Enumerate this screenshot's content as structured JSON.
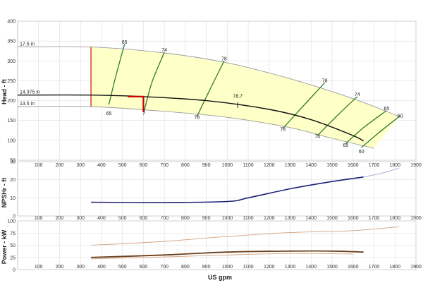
{
  "chart_data": [
    {
      "type": "line",
      "panel": "head",
      "ylabel": "Head - ft",
      "xlabel": "",
      "xlim": [
        0,
        1900
      ],
      "ylim": [
        50,
        400
      ],
      "x_ticks": [
        100,
        200,
        300,
        400,
        500,
        600,
        700,
        800,
        900,
        1000,
        1100,
        1200,
        1300,
        1400,
        1500,
        1600,
        1700,
        1800,
        1900
      ],
      "y_ticks": [
        50,
        100,
        150,
        200,
        250,
        300,
        350,
        400
      ],
      "grid": true,
      "colors": {
        "region": "#ffffc8",
        "efficiency": "#2e7d32",
        "operating": "#111111",
        "max_min": "#9a9a9a",
        "duty": "#cc0000",
        "min_flow_line": "#cc3322"
      },
      "series": [
        {
          "name": "17.5 in",
          "role": "max_diameter",
          "x": [
            0,
            350,
            700,
            1000,
            1300,
            1600,
            1820
          ],
          "y": [
            335,
            335,
            320,
            295,
            255,
            205,
            160
          ]
        },
        {
          "name": "14.375 in",
          "role": "operating_diameter",
          "x": [
            0,
            350,
            600,
            900,
            1200,
            1400,
            1600,
            1650
          ],
          "y": [
            214,
            214,
            210,
            200,
            178,
            152,
            112,
            98
          ]
        },
        {
          "name": "13.5 in",
          "role": "min_diameter",
          "x": [
            0,
            350,
            700,
            1000,
            1300,
            1500,
            1700
          ],
          "y": [
            185,
            185,
            173,
            158,
            132,
            105,
            80
          ]
        }
      ],
      "efficiency_contours": [
        {
          "label": "65",
          "x": [
            435,
            470,
            510
          ],
          "y": [
            190,
            265,
            342
          ]
        },
        {
          "label": "74",
          "x": [
            602,
            640,
            700
          ],
          "y": [
            170,
            245,
            322
          ]
        },
        {
          "label": "78",
          "x": [
            855,
            910,
            985
          ],
          "y": [
            160,
            220,
            300
          ]
        },
        {
          "label": "78",
          "x": [
            1265,
            1360,
            1465
          ],
          "y": [
            130,
            185,
            245
          ]
        },
        {
          "label": "74",
          "x": [
            1430,
            1520,
            1620
          ],
          "y": [
            112,
            160,
            210
          ]
        },
        {
          "label": "65",
          "x": [
            1565,
            1650,
            1760
          ],
          "y": [
            92,
            132,
            175
          ]
        },
        {
          "label": "60",
          "x": [
            1640,
            1720,
            1825
          ],
          "y": [
            82,
            118,
            162
          ]
        }
      ],
      "annotations": [
        {
          "text": "65",
          "x": 510,
          "y": 348
        },
        {
          "text": "74",
          "x": 700,
          "y": 328
        },
        {
          "text": "78",
          "x": 985,
          "y": 306
        },
        {
          "text": "78",
          "x": 1465,
          "y": 251
        },
        {
          "text": "74",
          "x": 1620,
          "y": 216
        },
        {
          "text": "65",
          "x": 1760,
          "y": 181
        },
        {
          "text": "60",
          "x": 1825,
          "y": 162
        },
        {
          "text": "65",
          "x": 435,
          "y": 168
        },
        {
          "text": "7",
          "x": 602,
          "y": 168
        },
        {
          "text": "78",
          "x": 855,
          "y": 158
        },
        {
          "text": "78",
          "x": 1265,
          "y": 128
        },
        {
          "text": "74",
          "x": 1430,
          "y": 110
        },
        {
          "text": "65",
          "x": 1565,
          "y": 88
        },
        {
          "text": "60",
          "x": 1640,
          "y": 72
        },
        {
          "text": "78.7",
          "x": 1050,
          "y": 212
        }
      ],
      "min_flow_x": 350,
      "duty_point": {
        "x": 600,
        "y": 210
      }
    },
    {
      "type": "line",
      "panel": "npshr",
      "ylabel": "NPSHr - ft",
      "xlim": [
        0,
        1900
      ],
      "ylim": [
        0,
        30
      ],
      "x_ticks": [
        100,
        200,
        300,
        400,
        500,
        600,
        700,
        800,
        900,
        1000,
        1100,
        1200,
        1300,
        1400,
        1500,
        1600,
        1700,
        1800,
        1900
      ],
      "y_ticks": [
        0,
        10,
        20,
        30
      ],
      "series": [
        {
          "name": "",
          "role": "operating",
          "x": [
            350,
            700,
            1000,
            1100,
            1300,
            1500,
            1650
          ],
          "y": [
            7.6,
            7.4,
            8.0,
            10,
            15,
            19,
            21.5
          ]
        },
        {
          "name": "",
          "role": "max",
          "x": [
            1650,
            1750,
            1820
          ],
          "y": [
            21.5,
            24,
            26.5
          ]
        }
      ]
    },
    {
      "type": "line",
      "panel": "power",
      "ylabel": "Power - kW",
      "xlabel": "US gpm",
      "xlim": [
        0,
        1900
      ],
      "ylim": [
        0,
        100
      ],
      "x_ticks": [
        100,
        200,
        300,
        400,
        500,
        600,
        700,
        800,
        900,
        1000,
        1100,
        1200,
        1300,
        1400,
        1500,
        1600,
        1700,
        1800,
        1900
      ],
      "y_ticks": [
        0,
        25,
        50,
        75,
        100
      ],
      "series": [
        {
          "name": "",
          "role": "max",
          "x": [
            350,
            700,
            1000,
            1300,
            1600,
            1820
          ],
          "y": [
            50,
            58,
            68,
            76,
            80,
            88
          ]
        },
        {
          "name": "",
          "role": "operating",
          "x": [
            350,
            700,
            1000,
            1300,
            1500,
            1650
          ],
          "y": [
            25,
            30,
            36,
            38,
            38,
            36
          ]
        },
        {
          "name": "",
          "role": "min",
          "x": [
            350,
            700,
            1000,
            1300,
            1600
          ],
          "y": [
            22,
            26,
            30,
            33,
            32
          ]
        }
      ]
    }
  ]
}
